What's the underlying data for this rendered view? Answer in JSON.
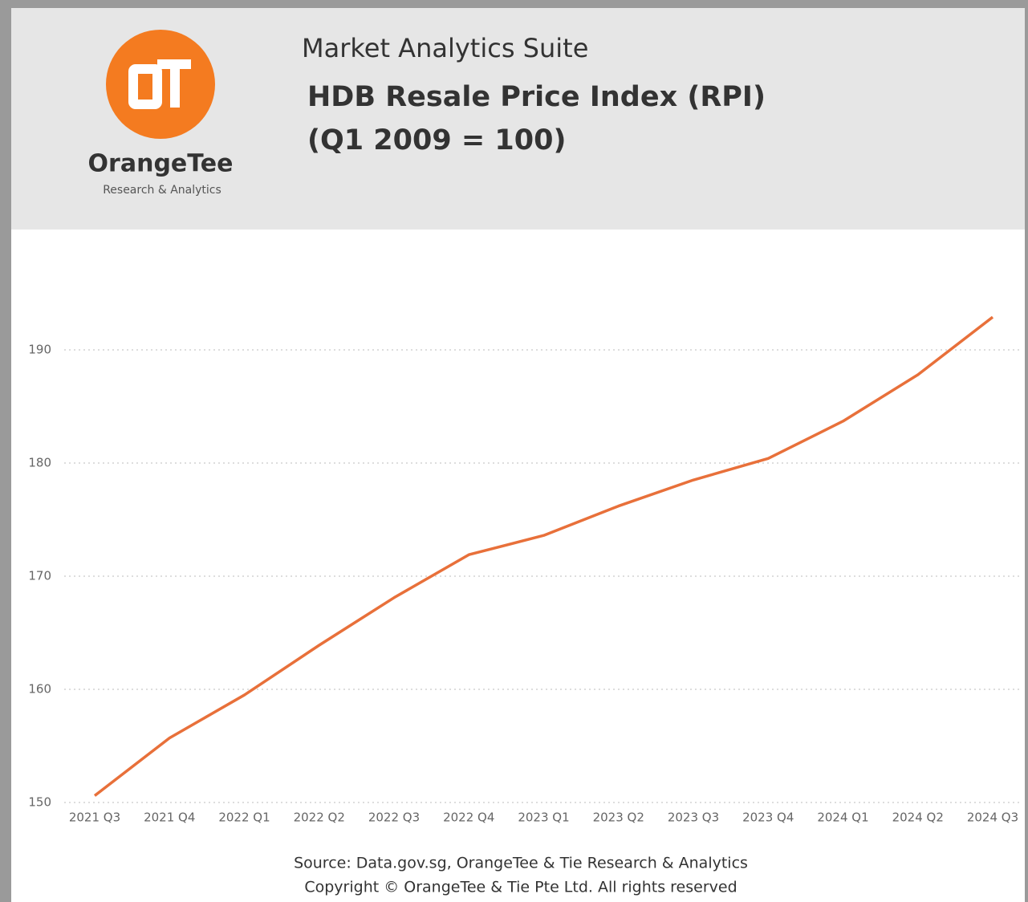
{
  "logo": {
    "name": "OrangeTee",
    "tagline": "Research & Analytics"
  },
  "header": {
    "suite": "Market Analytics Suite"
  },
  "chart_data": {
    "type": "line",
    "title": "HDB Resale Price Index (RPI)",
    "subtitle": "(Q1 2009 = 100)",
    "categories": [
      "2021 Q3",
      "2021 Q4",
      "2022 Q1",
      "2022 Q2",
      "2022 Q3",
      "2022 Q4",
      "2023 Q1",
      "2023 Q2",
      "2023 Q3",
      "2023 Q4",
      "2024 Q1",
      "2024 Q2",
      "2024 Q3"
    ],
    "series": [
      {
        "name": "RPI",
        "color": "#e8703a",
        "values": [
          150.6,
          155.7,
          159.5,
          163.9,
          168.1,
          171.9,
          173.6,
          176.2,
          178.5,
          180.4,
          183.7,
          187.8,
          192.9
        ]
      }
    ],
    "ylim": [
      150,
      195
    ],
    "yticks": [
      150,
      160,
      170,
      180,
      190
    ],
    "grid": true
  },
  "footer": {
    "source": "Source: Data.gov.sg, OrangeTee & Tie Research & Analytics",
    "copyright": "Copyright © OrangeTee & Tie Pte Ltd. All rights reserved"
  }
}
